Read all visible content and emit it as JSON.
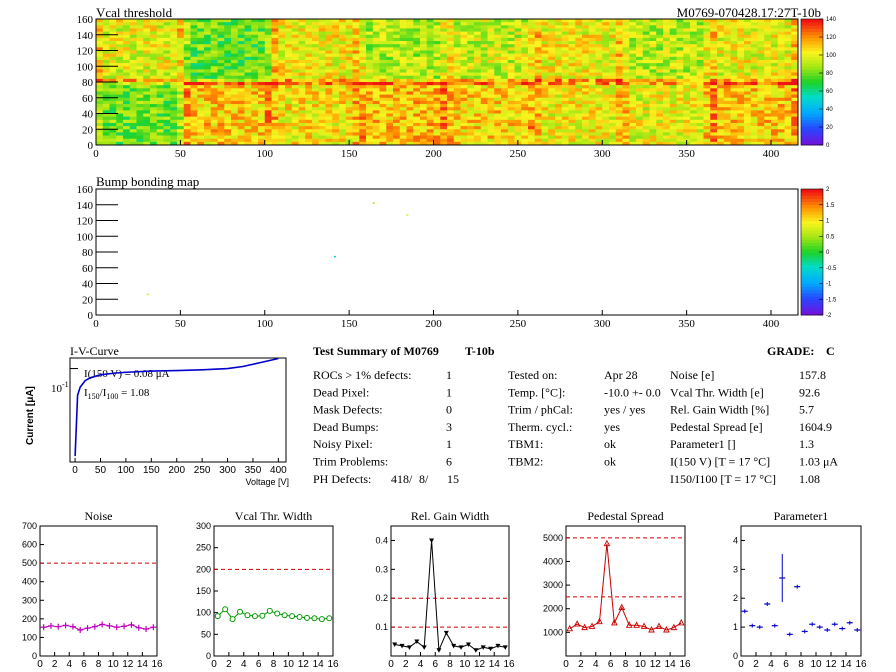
{
  "heatmap_vcal": {
    "title": "Vcal threshold",
    "module_label": "M0769-070428.17:27T-10b",
    "x_ticks": [
      "0",
      "50",
      "100",
      "150",
      "200",
      "250",
      "300",
      "350",
      "400"
    ],
    "y_ticks": [
      "0",
      "20",
      "40",
      "60",
      "80",
      "100",
      "120",
      "140",
      "160"
    ],
    "palette_ticks": [
      "0",
      "20",
      "40",
      "60",
      "80",
      "100",
      "120",
      "140"
    ]
  },
  "heatmap_bump": {
    "title": "Bump bonding map",
    "x_ticks": [
      "0",
      "50",
      "100",
      "150",
      "200",
      "250",
      "300",
      "350",
      "400"
    ],
    "y_ticks": [
      "0",
      "20",
      "40",
      "60",
      "80",
      "100",
      "120",
      "140",
      "160"
    ],
    "palette_ticks": [
      "-2",
      "-1.5",
      "-1",
      "-0.5",
      "0",
      "0.5",
      "1",
      "1.5",
      "2"
    ]
  },
  "iv": {
    "title": "I-V-Curve",
    "ylabel": "Current [μA]",
    "xlabel": "Voltage [V]",
    "ytick": "10",
    "ytick_exp": "-1",
    "x_ticks": [
      "0",
      "50",
      "100",
      "150",
      "200",
      "250",
      "300",
      "350",
      "400"
    ],
    "annot1": "I(150 V) = 0.08 μA",
    "annot2_a": "I",
    "annot2_sub1": "150",
    "annot2_b": "/I",
    "annot2_sub2": "100",
    "annot2_c": " = 1.08"
  },
  "summary": {
    "title": "Test Summary of M0769",
    "tag": "T-10b",
    "grade_label": "GRADE:",
    "grade": "C",
    "left_labels": [
      "ROCs > 1% defects:",
      "Dead Pixel:",
      "Mask Defects:",
      "Dead Bumps:",
      "Noisy Pixel:",
      "Trim Problems:",
      "PH Defects:"
    ],
    "left_values": [
      "1",
      "1",
      "0",
      "3",
      "1",
      "6"
    ],
    "ph_defects": [
      "418/",
      "8/",
      "15"
    ],
    "mid_labels": [
      "Tested on:",
      "Temp. [°C]:",
      "Trim / phCal:",
      "Therm. cycl.:",
      "TBM1:",
      "TBM2:"
    ],
    "mid_values": [
      "Apr 28",
      "-10.0 +- 0.0",
      "yes / yes",
      "yes",
      "ok",
      "ok"
    ],
    "right_labels": [
      "Noise [e]",
      "Vcal Thr. Width [e]",
      "Rel. Gain Width [%]",
      "Pedestal Spread [e]",
      "Parameter1 []",
      "I(150 V) [T = 17 °C]",
      "I150/I100  [T = 17 °C]"
    ],
    "right_values": [
      "157.8",
      "92.6",
      "5.7",
      "1604.9",
      "1.3",
      "1.03 μA",
      "1.08"
    ]
  },
  "colors": {
    "magenta": "#c000c0",
    "green": "#009900",
    "black": "#000000",
    "red": "#cc0000",
    "blue": "#0000cc",
    "limit": "#cc0000"
  },
  "chart_data": [
    {
      "type": "heatmap",
      "title": "Vcal threshold",
      "xlim": [
        0,
        416
      ],
      "ylim": [
        0,
        160
      ],
      "zlim": [
        0,
        140
      ],
      "roc_means_top": [
        100,
        78,
        102,
        90,
        95,
        102,
        92,
        100
      ],
      "roc_means_bottom": [
        80,
        110,
        105,
        112,
        108,
        102,
        100,
        110
      ]
    },
    {
      "type": "heatmap",
      "title": "Bump bonding map",
      "xlim": [
        0,
        416
      ],
      "ylim": [
        0,
        160
      ],
      "zlim": [
        -2,
        2
      ],
      "points": [
        [
          164,
          143,
          0.6
        ],
        [
          184,
          128,
          0.8
        ],
        [
          141,
          75,
          -0.6
        ],
        [
          30,
          27,
          0.7
        ]
      ]
    },
    {
      "type": "line",
      "title": "I-V-Curve",
      "xlabel": "Voltage [V]",
      "ylabel": "Current [μA]",
      "yscale": "log",
      "x": [
        0,
        5,
        10,
        20,
        30,
        50,
        80,
        100,
        150,
        200,
        250,
        300,
        330,
        360,
        400
      ],
      "y": [
        5e-05,
        0.01,
        0.02,
        0.035,
        0.045,
        0.058,
        0.068,
        0.072,
        0.08,
        0.084,
        0.09,
        0.1,
        0.12,
        0.16,
        0.24
      ]
    },
    {
      "type": "line",
      "title": "Noise",
      "xlim": [
        0,
        16
      ],
      "ylim": [
        0,
        700
      ],
      "limit": [
        500
      ],
      "color": "magenta",
      "x": [
        0,
        1,
        2,
        3,
        4,
        5,
        6,
        7,
        8,
        9,
        10,
        11,
        12,
        13,
        14,
        15
      ],
      "values": [
        155,
        162,
        158,
        165,
        158,
        140,
        150,
        158,
        170,
        162,
        155,
        160,
        168,
        152,
        145,
        155
      ]
    },
    {
      "type": "line",
      "title": "Vcal Thr. Width",
      "xlim": [
        0,
        16
      ],
      "ylim": [
        0,
        300
      ],
      "limit": [
        200
      ],
      "color": "green",
      "x": [
        0,
        1,
        2,
        3,
        4,
        5,
        6,
        7,
        8,
        9,
        10,
        11,
        12,
        13,
        14,
        15
      ],
      "values": [
        92,
        108,
        85,
        102,
        94,
        92,
        93,
        104,
        98,
        94,
        92,
        90,
        88,
        87,
        85,
        87
      ]
    },
    {
      "type": "line",
      "title": "Rel. Gain Width",
      "xlim": [
        0,
        16
      ],
      "ylim": [
        0,
        0.45
      ],
      "limit": [
        0.2,
        0.1
      ],
      "color": "black",
      "x": [
        0,
        1,
        2,
        3,
        4,
        5,
        6,
        7,
        8,
        9,
        10,
        11,
        12,
        13,
        14,
        15
      ],
      "values": [
        0.04,
        0.035,
        0.03,
        0.05,
        0.03,
        0.4,
        0.02,
        0.08,
        0.035,
        0.03,
        0.04,
        0.02,
        0.03,
        0.025,
        0.035,
        0.03
      ]
    },
    {
      "type": "line",
      "title": "Pedestal Spread",
      "xlim": [
        0,
        16
      ],
      "ylim": [
        0,
        5500
      ],
      "limit": [
        5000,
        2500
      ],
      "color": "red",
      "x": [
        0,
        1,
        2,
        3,
        4,
        5,
        6,
        7,
        8,
        9,
        10,
        11,
        12,
        13,
        14,
        15
      ],
      "values": [
        1150,
        1350,
        1200,
        1250,
        1450,
        4750,
        1400,
        2050,
        1300,
        1300,
        1250,
        1100,
        1250,
        1100,
        1200,
        1400
      ]
    },
    {
      "type": "scatter",
      "title": "Parameter1",
      "xlim": [
        0,
        16
      ],
      "ylim": [
        0,
        4.5
      ],
      "color": "blue",
      "x": [
        0,
        1,
        2,
        3,
        4,
        5,
        6,
        7,
        8,
        9,
        10,
        11,
        12,
        13,
        14,
        15
      ],
      "values": [
        1.55,
        1.05,
        1.0,
        1.8,
        1.05,
        2.7,
        0.75,
        2.4,
        0.85,
        1.1,
        1.0,
        0.9,
        1.1,
        0.95,
        1.15,
        0.9
      ]
    }
  ]
}
